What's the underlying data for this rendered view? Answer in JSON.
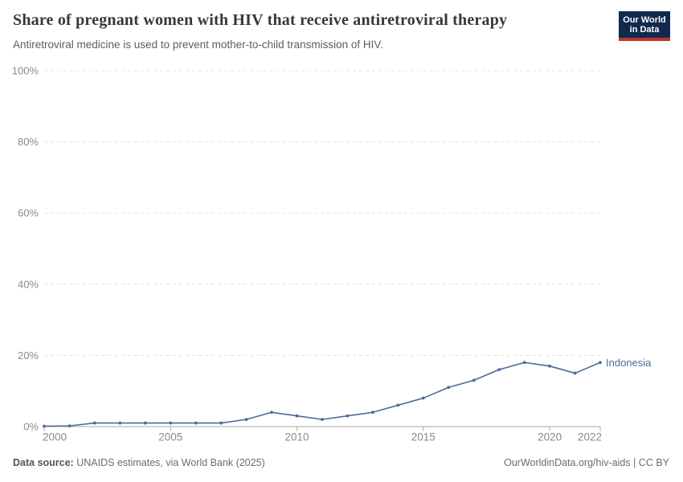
{
  "header": {
    "title": "Share of pregnant women with HIV that receive antiretroviral therapy",
    "subtitle": "Antiretroviral medicine is used to prevent mother-to-child transmission of HIV.",
    "logo": {
      "line1": "Our World",
      "line2": "in Data",
      "bg_color": "#12294f",
      "accent_color": "#c0362c"
    }
  },
  "chart_data": {
    "type": "line",
    "title": "Share of pregnant women with HIV that receive antiretroviral therapy",
    "x": [
      2000,
      2001,
      2002,
      2003,
      2004,
      2005,
      2006,
      2007,
      2008,
      2009,
      2010,
      2011,
      2012,
      2013,
      2014,
      2015,
      2016,
      2017,
      2018,
      2019,
      2020,
      2021,
      2022
    ],
    "series": [
      {
        "name": "Indonesia",
        "color": "#4C6A9C",
        "values": [
          0.1,
          0.2,
          1,
          1,
          1,
          1,
          1,
          1,
          2,
          4,
          3,
          2,
          3,
          4,
          6,
          8,
          11,
          13,
          16,
          18,
          17,
          15,
          18
        ]
      }
    ],
    "xlabel": "",
    "ylabel": "",
    "ylim": [
      0,
      100
    ],
    "yticks": [
      0,
      20,
      40,
      60,
      80,
      100
    ],
    "ytick_suffix": "%",
    "xticks": [
      2000,
      2005,
      2010,
      2015,
      2020,
      2022
    ],
    "grid": "horizontal-dashed",
    "legend_position": "end-of-line"
  },
  "footer": {
    "source_label": "Data source:",
    "source_text": " UNAIDS estimates, via World Bank (2025)",
    "right_text": "OurWorldinData.org/hiv-aids | CC BY"
  }
}
